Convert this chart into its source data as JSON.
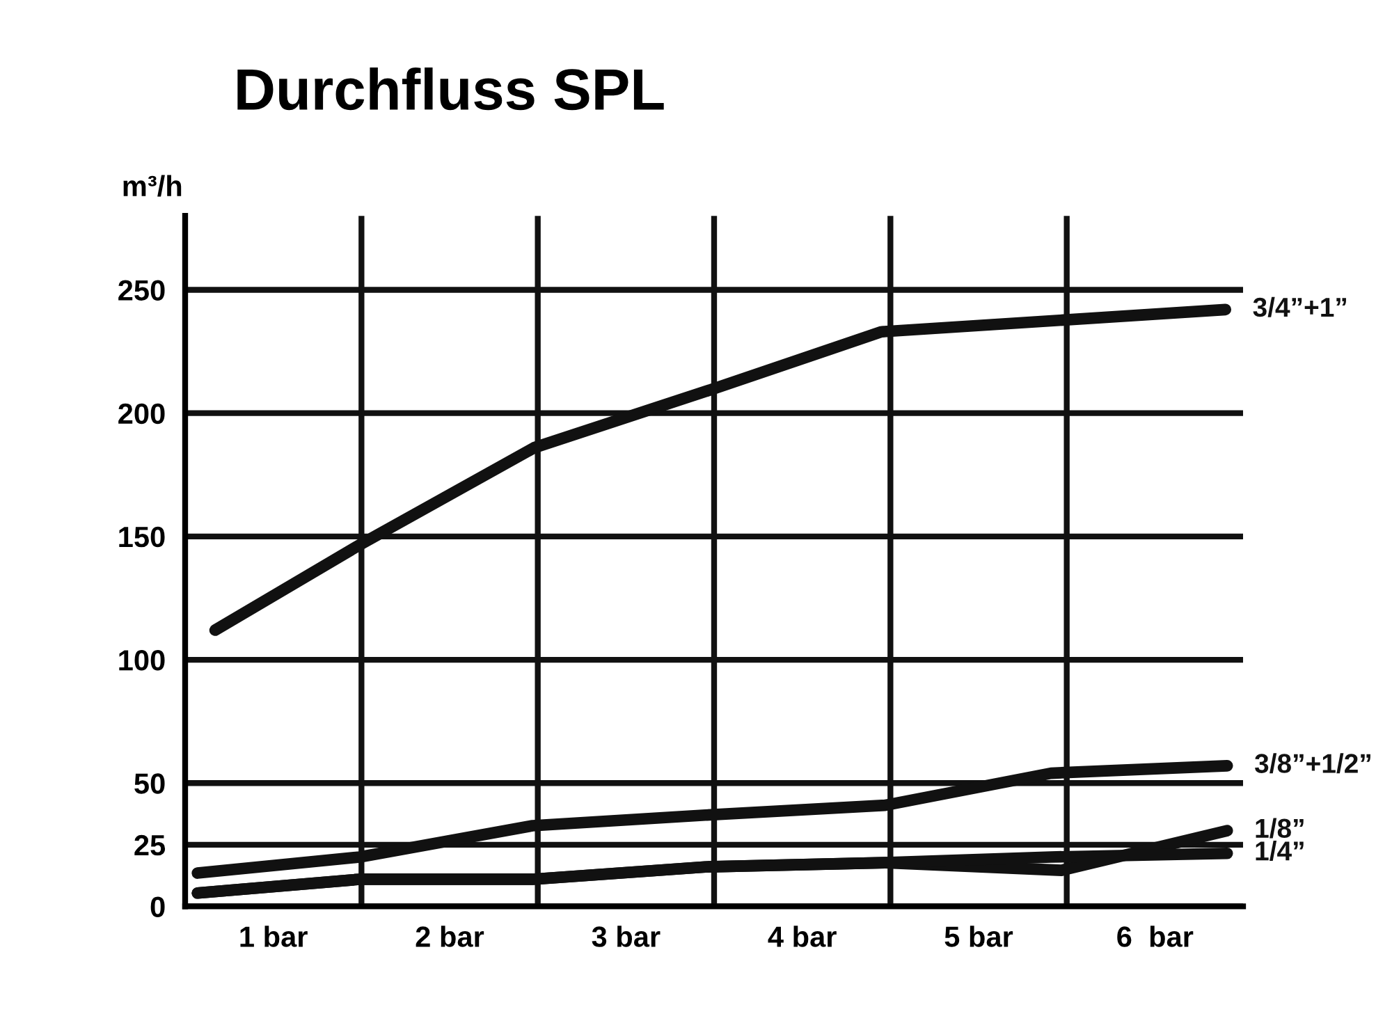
{
  "chart_data": {
    "type": "line",
    "title": "Durchfluss SPL",
    "ylabel": "m³/h",
    "xlim": [
      0.5,
      6.5
    ],
    "xticks": [
      {
        "value": 1,
        "label": "1 bar"
      },
      {
        "value": 1.5,
        "label": null
      },
      {
        "value": 2,
        "label": "2 bar"
      },
      {
        "value": 2.5,
        "label": null
      },
      {
        "value": 3,
        "label": "3 bar"
      },
      {
        "value": 3.5,
        "label": null
      },
      {
        "value": 4,
        "label": "4 bar"
      },
      {
        "value": 4.5,
        "label": null
      },
      {
        "value": 5,
        "label": "5 bar"
      },
      {
        "value": 5.5,
        "label": null
      },
      {
        "value": 6,
        "label": "6  bar"
      }
    ],
    "ylim": [
      0,
      280
    ],
    "yticks": [
      0,
      25,
      50,
      100,
      150,
      200,
      250
    ],
    "grid": true,
    "marker": "none",
    "line_style": "solid",
    "series": [
      {
        "name": "3/4”+1”",
        "color": "#111111",
        "x": [
          0.67,
          1.5,
          2.48,
          3.46,
          4.45,
          6.4
        ],
        "values": [
          112,
          147,
          186,
          209,
          233,
          242
        ]
      },
      {
        "name": "3/8”+1/2”",
        "color": "#111111",
        "x": [
          0.57,
          1.49,
          2.47,
          3.45,
          4.47,
          5.41,
          6.41
        ],
        "values": [
          13.5,
          20,
          32.7,
          37,
          41,
          54,
          57
        ]
      },
      {
        "name": "1/8”",
        "color": "#111111",
        "x": [
          0.57,
          1.49,
          2.47,
          3.45,
          4.47,
          5.47,
          6.41
        ],
        "values": [
          5.4,
          11,
          11,
          16,
          17.7,
          14.6,
          30.7
        ]
      },
      {
        "name": "1/4”",
        "color": "#111111",
        "x": [
          0.57,
          1.49,
          2.47,
          3.45,
          4.47,
          5.41,
          6.41
        ],
        "values": [
          5.4,
          11,
          11,
          16,
          17.7,
          20,
          21.5
        ]
      }
    ]
  }
}
